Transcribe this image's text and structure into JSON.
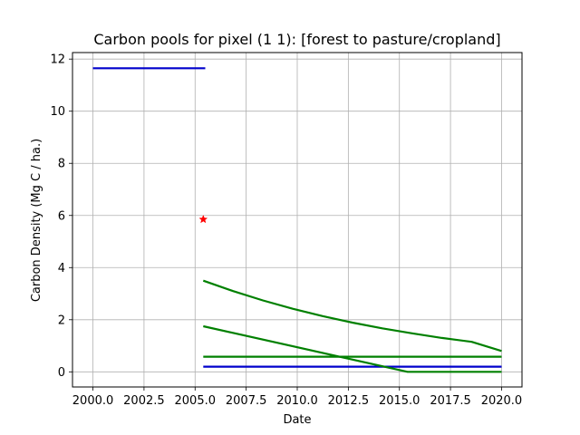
{
  "chart_data": {
    "type": "line",
    "title": "Carbon pools for pixel (1 1): [forest to pasture/cropland]",
    "xlabel": "Date",
    "ylabel": "Carbon Density (Mg C / ha.)",
    "xlim": [
      1999.0,
      2021.0
    ],
    "ylim": [
      -0.58,
      12.25
    ],
    "xticks": [
      2000.0,
      2002.5,
      2005.0,
      2007.5,
      2010.0,
      2012.5,
      2015.0,
      2017.5,
      2020.0
    ],
    "xtick_labels": [
      "2000.0",
      "2002.5",
      "2005.0",
      "2007.5",
      "2010.0",
      "2012.5",
      "2015.0",
      "2017.5",
      "2020.0"
    ],
    "yticks": [
      0,
      2,
      4,
      6,
      8,
      10,
      12
    ],
    "ytick_labels": [
      "0",
      "2",
      "4",
      "6",
      "8",
      "10",
      "12"
    ],
    "grid": true,
    "series": [
      {
        "color": "#0000cc",
        "points": [
          [
            2000.0,
            11.65
          ],
          [
            2005.5,
            11.65
          ]
        ]
      },
      {
        "color": "#0000cc",
        "points": [
          [
            2005.4,
            0.2
          ],
          [
            2020.0,
            0.2
          ]
        ]
      },
      {
        "color": "#008000",
        "points": [
          [
            2005.4,
            3.5
          ],
          [
            2006.86,
            3.1
          ],
          [
            2008.32,
            2.74
          ],
          [
            2009.78,
            2.42
          ],
          [
            2011.24,
            2.14
          ],
          [
            2012.7,
            1.89
          ],
          [
            2014.16,
            1.67
          ],
          [
            2015.62,
            1.48
          ],
          [
            2017.08,
            1.3
          ],
          [
            2018.54,
            1.15
          ],
          [
            2020.0,
            0.8
          ]
        ]
      },
      {
        "color": "#008000",
        "points": [
          [
            2005.4,
            1.75
          ],
          [
            2015.4,
            0.0
          ],
          [
            2020.0,
            0.0
          ]
        ]
      },
      {
        "color": "#008000",
        "points": [
          [
            2005.4,
            0.58
          ],
          [
            2020.0,
            0.58
          ]
        ]
      }
    ],
    "markers": [
      {
        "x": 2005.4,
        "y": 5.85,
        "shape": "star",
        "color": "#ff0000"
      }
    ]
  }
}
